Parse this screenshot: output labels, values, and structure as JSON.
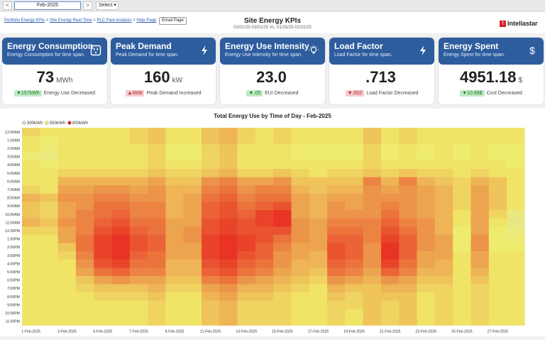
{
  "toolbar": {
    "prev": "<",
    "next": ">",
    "date": "Feb-2025",
    "select": "Select"
  },
  "breadcrumbs": [
    "Portfolio Energy KPIs",
    "Site Energy Real Time",
    "PLC Past Analysis",
    "Help Page"
  ],
  "breadcrumb_sep": ">",
  "email_label": "Email Page",
  "page_title": "Site Energy KPIs",
  "subtitle": "02/01/25-03/01/25 Vs. 01/25/25-02/22/25",
  "logo_text": "Intellastar",
  "colors": {
    "card_header": "#2e5d9e",
    "badge_green": "#bfe9c4",
    "badge_red": "#f8c9cc",
    "accent_red": "#d6212c"
  },
  "kpis": [
    {
      "title": "Energy Consumption",
      "subtitle": "Energy Consumption for time span.",
      "icon": "outlet-icon",
      "value": "73",
      "unit": "MWh",
      "delta": "▼157kWh",
      "delta_type": "green",
      "delta_text": "Energy Use Decreased"
    },
    {
      "title": "Peak Demand",
      "subtitle": "Peak Demand for time span.",
      "icon": "lightning-icon",
      "value": "160",
      "unit": "kW",
      "delta": "▲4kW",
      "delta_type": "red",
      "delta_text": "Peak Demand Increased"
    },
    {
      "title": "Energy Use Intensity",
      "subtitle": "Energy Use Intensity for time span.",
      "icon": "bulb-icon",
      "value": "23.0",
      "unit": "",
      "delta": "▼.05",
      "delta_type": "green",
      "delta_text": "EUI Decreased"
    },
    {
      "title": "Load Factor",
      "subtitle": "Load Factor for time span.",
      "icon": "lightning-icon",
      "value": ".713",
      "unit": "",
      "delta": "▼.002",
      "delta_type": "red",
      "delta_text": "Load Factor Decreased"
    },
    {
      "title": "Energy Spent",
      "subtitle": "Energy Spent for time span.",
      "icon": "dollar-icon",
      "value": "4951.18",
      "unit": "$",
      "delta": "▼10.68$",
      "delta_type": "green",
      "delta_text": "Cost Decreased"
    }
  ],
  "chart_data": {
    "type": "heatmap",
    "title": "Total Energy Use by Time of Day - Feb-2025",
    "legend": [
      {
        "label": "300kWh",
        "color": "#d8d8c8"
      },
      {
        "label": "550kWh",
        "color": "#f0ec6a"
      },
      {
        "label": "800kWh",
        "color": "#e8231e"
      }
    ],
    "y_labels": [
      "12:00AM",
      "1:00AM",
      "2:00AM",
      "3:00AM",
      "4:00AM",
      "5:00AM",
      "6:00AM",
      "7:00AM",
      "8:00AM",
      "9:00AM",
      "10:00AM",
      "11:00AM",
      "12:00PM",
      "1:00PM",
      "2:00PM",
      "3:00PM",
      "4:00PM",
      "5:00PM",
      "6:00PM",
      "7:00PM",
      "8:00PM",
      "9:00PM",
      "10:00PM",
      "11:00PM"
    ],
    "x_labels": [
      "1-Feb-2025",
      "3-Feb-2025",
      "5-Feb-2025",
      "7-Feb-2025",
      "9-Feb-2025",
      "11-Feb-2025",
      "13-Feb-2025",
      "15-Feb-2025",
      "17-Feb-2025",
      "19-Feb-2025",
      "21-Feb-2025",
      "23-Feb-2025",
      "25-Feb-2025",
      "27-Feb-2025"
    ],
    "days": 28,
    "values": [
      [
        580,
        560,
        560,
        520,
        560,
        560,
        560,
        580,
        620,
        600,
        600,
        620,
        580,
        560,
        560,
        560,
        560,
        560,
        560,
        560,
        560,
        560,
        560,
        560
      ],
      [
        560,
        540,
        520,
        500,
        540,
        560,
        560,
        560,
        600,
        580,
        580,
        600,
        580,
        560,
        560,
        560,
        560,
        560,
        560,
        560,
        560,
        560,
        560,
        560
      ],
      [
        560,
        560,
        560,
        560,
        560,
        580,
        620,
        640,
        660,
        640,
        640,
        660,
        640,
        640,
        600,
        580,
        560,
        560,
        560,
        560,
        560,
        560,
        560,
        560
      ],
      [
        560,
        560,
        560,
        560,
        560,
        580,
        620,
        640,
        660,
        660,
        680,
        680,
        680,
        700,
        700,
        680,
        660,
        640,
        600,
        580,
        560,
        560,
        560,
        560
      ],
      [
        560,
        560,
        560,
        560,
        560,
        580,
        620,
        660,
        680,
        700,
        700,
        720,
        740,
        760,
        760,
        760,
        740,
        700,
        640,
        600,
        580,
        560,
        560,
        560
      ],
      [
        560,
        560,
        560,
        560,
        560,
        580,
        620,
        660,
        680,
        700,
        720,
        740,
        760,
        780,
        780,
        780,
        760,
        720,
        660,
        600,
        580,
        560,
        560,
        560
      ],
      [
        580,
        580,
        560,
        560,
        560,
        580,
        620,
        640,
        660,
        680,
        680,
        700,
        720,
        740,
        740,
        720,
        700,
        680,
        640,
        600,
        580,
        560,
        560,
        560
      ],
      [
        600,
        600,
        580,
        580,
        580,
        600,
        640,
        660,
        660,
        680,
        680,
        700,
        700,
        720,
        720,
        700,
        700,
        680,
        640,
        620,
        600,
        580,
        580,
        580
      ],
      [
        560,
        560,
        540,
        540,
        560,
        580,
        600,
        620,
        620,
        620,
        620,
        640,
        640,
        640,
        640,
        640,
        620,
        620,
        600,
        580,
        560,
        560,
        560,
        560
      ],
      [
        560,
        560,
        540,
        540,
        560,
        580,
        600,
        620,
        640,
        640,
        640,
        640,
        660,
        660,
        640,
        640,
        620,
        620,
        600,
        580,
        560,
        560,
        560,
        560
      ],
      [
        600,
        600,
        580,
        580,
        580,
        600,
        660,
        680,
        700,
        720,
        720,
        740,
        740,
        760,
        760,
        760,
        740,
        720,
        680,
        640,
        620,
        600,
        600,
        600
      ],
      [
        620,
        620,
        600,
        600,
        600,
        620,
        680,
        700,
        720,
        740,
        740,
        760,
        760,
        780,
        780,
        780,
        760,
        740,
        700,
        660,
        640,
        620,
        620,
        620
      ],
      [
        580,
        580,
        560,
        560,
        560,
        580,
        640,
        660,
        680,
        700,
        720,
        740,
        740,
        760,
        760,
        740,
        720,
        700,
        660,
        620,
        600,
        580,
        580,
        580
      ],
      [
        560,
        560,
        560,
        560,
        560,
        580,
        640,
        680,
        700,
        720,
        760,
        760,
        740,
        740,
        720,
        720,
        700,
        680,
        640,
        620,
        600,
        580,
        580,
        580
      ],
      [
        580,
        580,
        560,
        560,
        560,
        600,
        660,
        680,
        700,
        740,
        780,
        780,
        740,
        700,
        680,
        660,
        660,
        640,
        620,
        600,
        580,
        580,
        580,
        580
      ],
      [
        560,
        560,
        540,
        540,
        560,
        580,
        600,
        620,
        640,
        640,
        640,
        660,
        660,
        660,
        640,
        640,
        620,
        620,
        600,
        580,
        560,
        560,
        560,
        560
      ],
      [
        560,
        560,
        540,
        540,
        560,
        560,
        600,
        600,
        620,
        620,
        620,
        640,
        640,
        640,
        640,
        620,
        620,
        600,
        580,
        560,
        560,
        560,
        560,
        560
      ],
      [
        560,
        560,
        540,
        540,
        560,
        580,
        600,
        620,
        640,
        660,
        660,
        680,
        700,
        720,
        740,
        740,
        720,
        700,
        660,
        620,
        600,
        580,
        580,
        580
      ],
      [
        560,
        560,
        540,
        540,
        560,
        580,
        600,
        620,
        640,
        640,
        660,
        680,
        700,
        720,
        720,
        720,
        700,
        680,
        640,
        600,
        580,
        580,
        560,
        560
      ],
      [
        600,
        600,
        580,
        580,
        580,
        600,
        680,
        660,
        660,
        660,
        660,
        680,
        680,
        680,
        660,
        660,
        660,
        640,
        620,
        600,
        600,
        600,
        600,
        600
      ],
      [
        560,
        560,
        540,
        540,
        560,
        580,
        620,
        640,
        660,
        680,
        700,
        720,
        740,
        760,
        780,
        780,
        760,
        720,
        660,
        620,
        600,
        580,
        580,
        580
      ],
      [
        580,
        580,
        560,
        560,
        560,
        600,
        680,
        660,
        660,
        660,
        660,
        680,
        700,
        720,
        720,
        720,
        700,
        680,
        640,
        620,
        600,
        600,
        600,
        600
      ],
      [
        560,
        560,
        540,
        540,
        560,
        580,
        620,
        640,
        640,
        640,
        640,
        660,
        660,
        660,
        660,
        640,
        640,
        620,
        600,
        580,
        560,
        560,
        560,
        560
      ],
      [
        560,
        560,
        560,
        560,
        560,
        580,
        600,
        620,
        620,
        620,
        620,
        620,
        620,
        640,
        640,
        640,
        620,
        620,
        600,
        580,
        580,
        580,
        580,
        580
      ],
      [
        560,
        560,
        540,
        540,
        560,
        560,
        580,
        580,
        580,
        580,
        560,
        560,
        540,
        540,
        540,
        560,
        560,
        560,
        560,
        560,
        560,
        560,
        560,
        560
      ],
      [
        560,
        560,
        560,
        560,
        560,
        580,
        620,
        640,
        640,
        640,
        640,
        640,
        640,
        660,
        660,
        640,
        640,
        620,
        600,
        580,
        580,
        580,
        580,
        580
      ],
      [
        560,
        560,
        540,
        540,
        560,
        560,
        600,
        600,
        600,
        600,
        580,
        560,
        540,
        540,
        540,
        560,
        560,
        560,
        560,
        560,
        560,
        560,
        560,
        560
      ],
      [
        560,
        560,
        540,
        540,
        540,
        560,
        560,
        560,
        560,
        560,
        500,
        480,
        500,
        520,
        540,
        560,
        560,
        560,
        560,
        560,
        560,
        560,
        560,
        560
      ]
    ]
  }
}
